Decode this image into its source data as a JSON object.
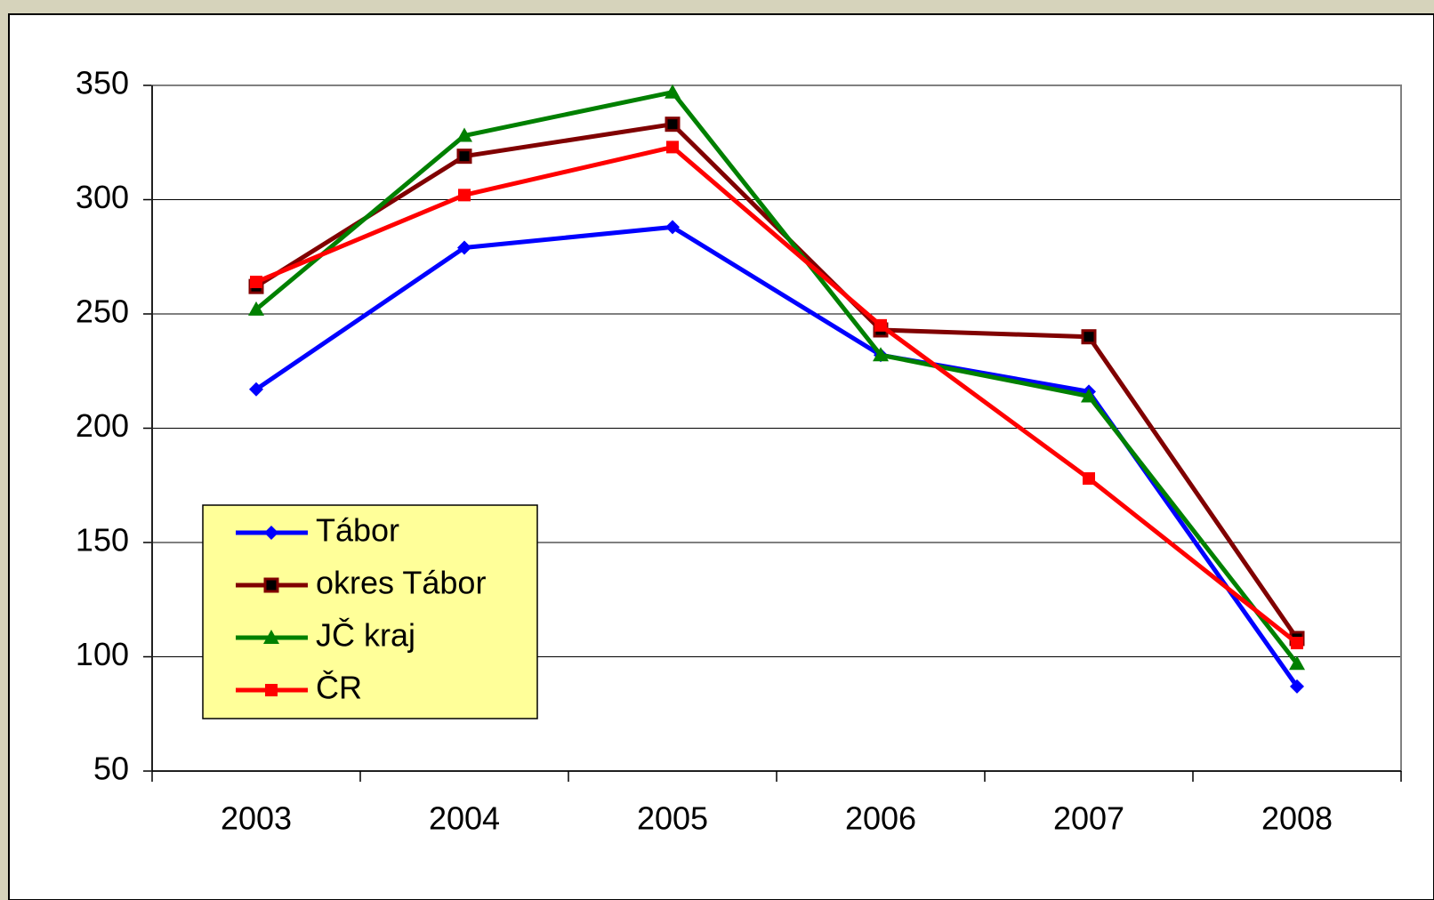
{
  "chart_data": {
    "type": "line",
    "categories": [
      "2003",
      "2004",
      "2005",
      "2006",
      "2007",
      "2008"
    ],
    "series": [
      {
        "name": "Tábor",
        "color": "#0000ff",
        "marker": "diamond",
        "values": [
          217,
          279,
          288,
          232,
          216,
          87
        ]
      },
      {
        "name": "okres Tábor",
        "color": "#800000",
        "marker": "square",
        "values": [
          262,
          319,
          333,
          243,
          240,
          108
        ]
      },
      {
        "name": "JČ kraj",
        "color": "#008000",
        "marker": "triangle",
        "values": [
          252,
          328,
          347,
          232,
          214,
          97
        ]
      },
      {
        "name": "ČR",
        "color": "#ff0000",
        "marker": "square",
        "values": [
          264,
          302,
          323,
          245,
          178,
          106
        ]
      }
    ],
    "ylim": [
      50,
      350
    ],
    "yticks": [
      50,
      100,
      150,
      200,
      250,
      300,
      350
    ],
    "grid": true,
    "legend": "center left"
  }
}
